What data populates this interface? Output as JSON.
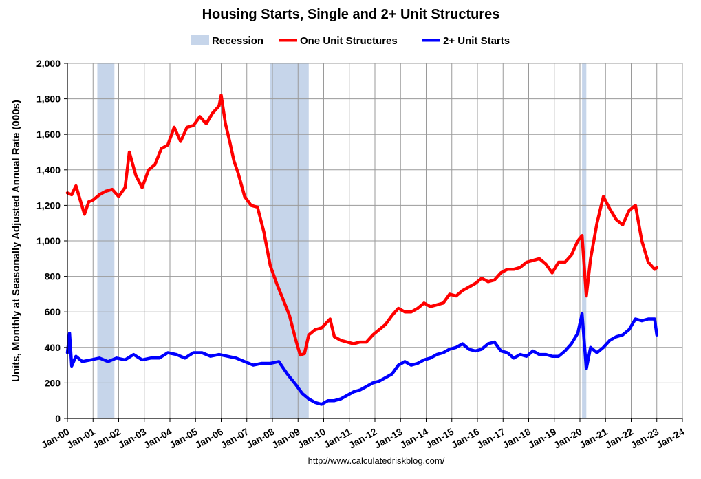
{
  "chart_data": {
    "type": "line",
    "title": "Housing Starts, Single and 2+ Unit Structures",
    "ylabel": "Units, Monthly at Seasonally Adjusted Annual Rate (000s)",
    "xlabel": "",
    "source": "http://www.calculatedriskblog.com/",
    "ylim": [
      0,
      2000
    ],
    "xlim": [
      "2000-01",
      "2024-01"
    ],
    "y_ticks": [
      "0",
      "200",
      "400",
      "600",
      "800",
      "1,000",
      "1,200",
      "1,400",
      "1,600",
      "1,800",
      "2,000"
    ],
    "x_ticks": [
      "Jan-00",
      "Jan-01",
      "Jan-02",
      "Jan-03",
      "Jan-04",
      "Jan-05",
      "Jan-06",
      "Jan-07",
      "Jan-08",
      "Jan-09",
      "Jan-10",
      "Jan-11",
      "Jan-12",
      "Jan-13",
      "Jan-14",
      "Jan-15",
      "Jan-16",
      "Jan-17",
      "Jan-18",
      "Jan-19",
      "Jan-20",
      "Jan-21",
      "Jan-22",
      "Jan-23",
      "Jan-24"
    ],
    "grid": true,
    "legend_position": "top-center",
    "recessions": [
      {
        "start": "2001-03",
        "end": "2001-11"
      },
      {
        "start": "2007-12",
        "end": "2009-06"
      },
      {
        "start": "2020-02",
        "end": "2020-04"
      }
    ],
    "legend": [
      {
        "label": "Recession",
        "color": "#c6d5ea",
        "kind": "box"
      },
      {
        "label": "One Unit Structures",
        "color": "#ff0000",
        "kind": "line"
      },
      {
        "label": "2+ Unit Starts",
        "color": "#0000ff",
        "kind": "line"
      }
    ],
    "series": [
      {
        "name": "One Unit Structures",
        "color": "#ff0000",
        "points": [
          [
            "2000-01",
            1270
          ],
          [
            "2000-03",
            1260
          ],
          [
            "2000-05",
            1310
          ],
          [
            "2000-07",
            1230
          ],
          [
            "2000-09",
            1150
          ],
          [
            "2000-11",
            1220
          ],
          [
            "2001-01",
            1230
          ],
          [
            "2001-04",
            1260
          ],
          [
            "2001-07",
            1280
          ],
          [
            "2001-10",
            1290
          ],
          [
            "2002-01",
            1250
          ],
          [
            "2002-04",
            1300
          ],
          [
            "2002-06",
            1500
          ],
          [
            "2002-09",
            1370
          ],
          [
            "2002-12",
            1300
          ],
          [
            "2003-03",
            1400
          ],
          [
            "2003-06",
            1430
          ],
          [
            "2003-09",
            1520
          ],
          [
            "2003-12",
            1540
          ],
          [
            "2004-03",
            1640
          ],
          [
            "2004-06",
            1560
          ],
          [
            "2004-09",
            1640
          ],
          [
            "2004-12",
            1650
          ],
          [
            "2005-03",
            1700
          ],
          [
            "2005-06",
            1660
          ],
          [
            "2005-09",
            1720
          ],
          [
            "2005-12",
            1760
          ],
          [
            "2006-01",
            1820
          ],
          [
            "2006-03",
            1660
          ],
          [
            "2006-05",
            1560
          ],
          [
            "2006-07",
            1450
          ],
          [
            "2006-09",
            1380
          ],
          [
            "2006-12",
            1250
          ],
          [
            "2007-03",
            1200
          ],
          [
            "2007-06",
            1190
          ],
          [
            "2007-09",
            1050
          ],
          [
            "2007-12",
            860
          ],
          [
            "2008-03",
            760
          ],
          [
            "2008-06",
            670
          ],
          [
            "2008-09",
            580
          ],
          [
            "2008-12",
            440
          ],
          [
            "2009-02",
            357
          ],
          [
            "2009-04",
            365
          ],
          [
            "2009-06",
            470
          ],
          [
            "2009-09",
            500
          ],
          [
            "2009-12",
            510
          ],
          [
            "2010-04",
            560
          ],
          [
            "2010-06",
            460
          ],
          [
            "2010-09",
            440
          ],
          [
            "2010-12",
            430
          ],
          [
            "2011-03",
            420
          ],
          [
            "2011-06",
            430
          ],
          [
            "2011-09",
            430
          ],
          [
            "2011-12",
            470
          ],
          [
            "2012-03",
            500
          ],
          [
            "2012-06",
            530
          ],
          [
            "2012-09",
            580
          ],
          [
            "2012-12",
            620
          ],
          [
            "2013-03",
            600
          ],
          [
            "2013-06",
            600
          ],
          [
            "2013-09",
            620
          ],
          [
            "2013-12",
            650
          ],
          [
            "2014-03",
            630
          ],
          [
            "2014-06",
            640
          ],
          [
            "2014-09",
            650
          ],
          [
            "2014-12",
            700
          ],
          [
            "2015-03",
            690
          ],
          [
            "2015-06",
            720
          ],
          [
            "2015-09",
            740
          ],
          [
            "2015-12",
            760
          ],
          [
            "2016-03",
            790
          ],
          [
            "2016-06",
            770
          ],
          [
            "2016-09",
            780
          ],
          [
            "2016-12",
            820
          ],
          [
            "2017-03",
            840
          ],
          [
            "2017-06",
            840
          ],
          [
            "2017-09",
            850
          ],
          [
            "2017-12",
            880
          ],
          [
            "2018-03",
            890
          ],
          [
            "2018-06",
            900
          ],
          [
            "2018-09",
            870
          ],
          [
            "2018-12",
            820
          ],
          [
            "2019-03",
            880
          ],
          [
            "2019-06",
            880
          ],
          [
            "2019-09",
            920
          ],
          [
            "2019-12",
            1000
          ],
          [
            "2020-02",
            1030
          ],
          [
            "2020-04",
            690
          ],
          [
            "2020-06",
            900
          ],
          [
            "2020-09",
            1100
          ],
          [
            "2020-12",
            1250
          ],
          [
            "2021-03",
            1180
          ],
          [
            "2021-06",
            1120
          ],
          [
            "2021-09",
            1090
          ],
          [
            "2021-12",
            1170
          ],
          [
            "2022-03",
            1200
          ],
          [
            "2022-06",
            1000
          ],
          [
            "2022-09",
            880
          ],
          [
            "2022-12",
            840
          ],
          [
            "2023-01",
            850
          ]
        ]
      },
      {
        "name": "2+ Unit Starts",
        "color": "#0000ff",
        "points": [
          [
            "2000-01",
            370
          ],
          [
            "2000-02",
            480
          ],
          [
            "2000-03",
            295
          ],
          [
            "2000-05",
            350
          ],
          [
            "2000-08",
            320
          ],
          [
            "2000-12",
            330
          ],
          [
            "2001-04",
            340
          ],
          [
            "2001-08",
            320
          ],
          [
            "2001-12",
            340
          ],
          [
            "2002-04",
            330
          ],
          [
            "2002-08",
            360
          ],
          [
            "2002-12",
            330
          ],
          [
            "2003-04",
            340
          ],
          [
            "2003-08",
            340
          ],
          [
            "2003-12",
            370
          ],
          [
            "2004-04",
            360
          ],
          [
            "2004-08",
            340
          ],
          [
            "2004-12",
            370
          ],
          [
            "2005-04",
            370
          ],
          [
            "2005-08",
            350
          ],
          [
            "2005-12",
            360
          ],
          [
            "2006-04",
            350
          ],
          [
            "2006-08",
            340
          ],
          [
            "2006-12",
            320
          ],
          [
            "2007-04",
            300
          ],
          [
            "2007-08",
            310
          ],
          [
            "2007-12",
            310
          ],
          [
            "2008-04",
            320
          ],
          [
            "2008-08",
            250
          ],
          [
            "2008-12",
            190
          ],
          [
            "2009-03",
            140
          ],
          [
            "2009-06",
            110
          ],
          [
            "2009-09",
            90
          ],
          [
            "2009-12",
            80
          ],
          [
            "2010-03",
            100
          ],
          [
            "2010-06",
            100
          ],
          [
            "2010-09",
            110
          ],
          [
            "2010-12",
            130
          ],
          [
            "2011-03",
            150
          ],
          [
            "2011-06",
            160
          ],
          [
            "2011-09",
            180
          ],
          [
            "2011-12",
            200
          ],
          [
            "2012-03",
            210
          ],
          [
            "2012-06",
            230
          ],
          [
            "2012-09",
            250
          ],
          [
            "2012-12",
            300
          ],
          [
            "2013-03",
            320
          ],
          [
            "2013-06",
            300
          ],
          [
            "2013-09",
            310
          ],
          [
            "2013-12",
            330
          ],
          [
            "2014-03",
            340
          ],
          [
            "2014-06",
            360
          ],
          [
            "2014-09",
            370
          ],
          [
            "2014-12",
            390
          ],
          [
            "2015-03",
            400
          ],
          [
            "2015-06",
            420
          ],
          [
            "2015-09",
            390
          ],
          [
            "2015-12",
            380
          ],
          [
            "2016-03",
            390
          ],
          [
            "2016-06",
            420
          ],
          [
            "2016-09",
            430
          ],
          [
            "2016-12",
            380
          ],
          [
            "2017-03",
            370
          ],
          [
            "2017-06",
            340
          ],
          [
            "2017-09",
            360
          ],
          [
            "2017-12",
            350
          ],
          [
            "2018-03",
            380
          ],
          [
            "2018-06",
            360
          ],
          [
            "2018-09",
            360
          ],
          [
            "2018-12",
            350
          ],
          [
            "2019-03",
            350
          ],
          [
            "2019-06",
            380
          ],
          [
            "2019-09",
            420
          ],
          [
            "2019-12",
            480
          ],
          [
            "2020-02",
            590
          ],
          [
            "2020-04",
            280
          ],
          [
            "2020-06",
            400
          ],
          [
            "2020-09",
            370
          ],
          [
            "2020-12",
            400
          ],
          [
            "2021-03",
            440
          ],
          [
            "2021-06",
            460
          ],
          [
            "2021-09",
            470
          ],
          [
            "2021-12",
            500
          ],
          [
            "2022-03",
            560
          ],
          [
            "2022-06",
            550
          ],
          [
            "2022-09",
            560
          ],
          [
            "2022-12",
            560
          ],
          [
            "2023-01",
            470
          ]
        ]
      }
    ]
  }
}
